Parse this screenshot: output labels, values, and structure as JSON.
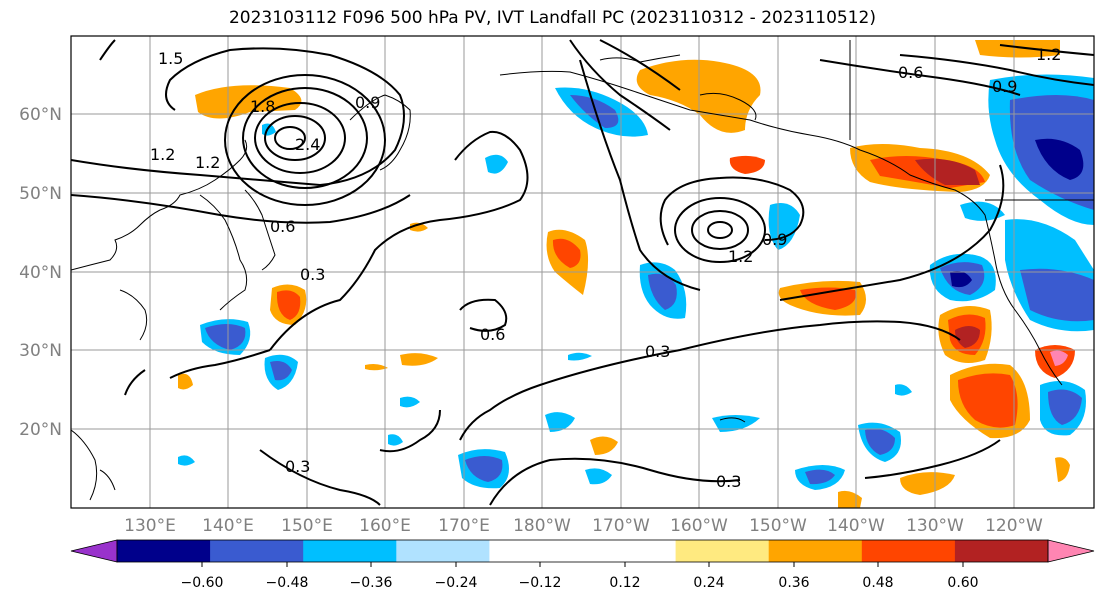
{
  "title": "2023103112 F096 500 hPa PV, IVT Landfall PC (2023110312 - 2023110512)",
  "lat_labels": [
    "60°N",
    "50°N",
    "40°N",
    "30°N",
    "20°N"
  ],
  "lon_labels": [
    "130°E",
    "140°E",
    "150°E",
    "160°E",
    "170°E",
    "180°W",
    "170°W",
    "160°W",
    "150°W",
    "140°W",
    "130°W",
    "120°W"
  ],
  "colorbar": {
    "colors": [
      "#9932cc",
      "#00008b",
      "#3a5bd0",
      "#00bfff",
      "#b0e2ff",
      "#ffffff",
      "#ffffff",
      "#ffea80",
      "#ffa500",
      "#ff4500",
      "#b22222",
      "#ff85b2"
    ],
    "ticks": [
      "−0.60",
      "−0.48",
      "−0.36",
      "−0.24",
      "−0.12",
      "0.12",
      "0.24",
      "0.36",
      "0.48",
      "0.60"
    ]
  },
  "contour_labels": [
    "1.2",
    "1.5",
    "1.8",
    "2.4",
    "0.9",
    "1.2",
    "0.6",
    "0.3",
    "0.6",
    "0.3",
    "0.3",
    "0.3",
    "0.9",
    "1.2",
    "0.6",
    "0.9",
    "1.2"
  ]
}
